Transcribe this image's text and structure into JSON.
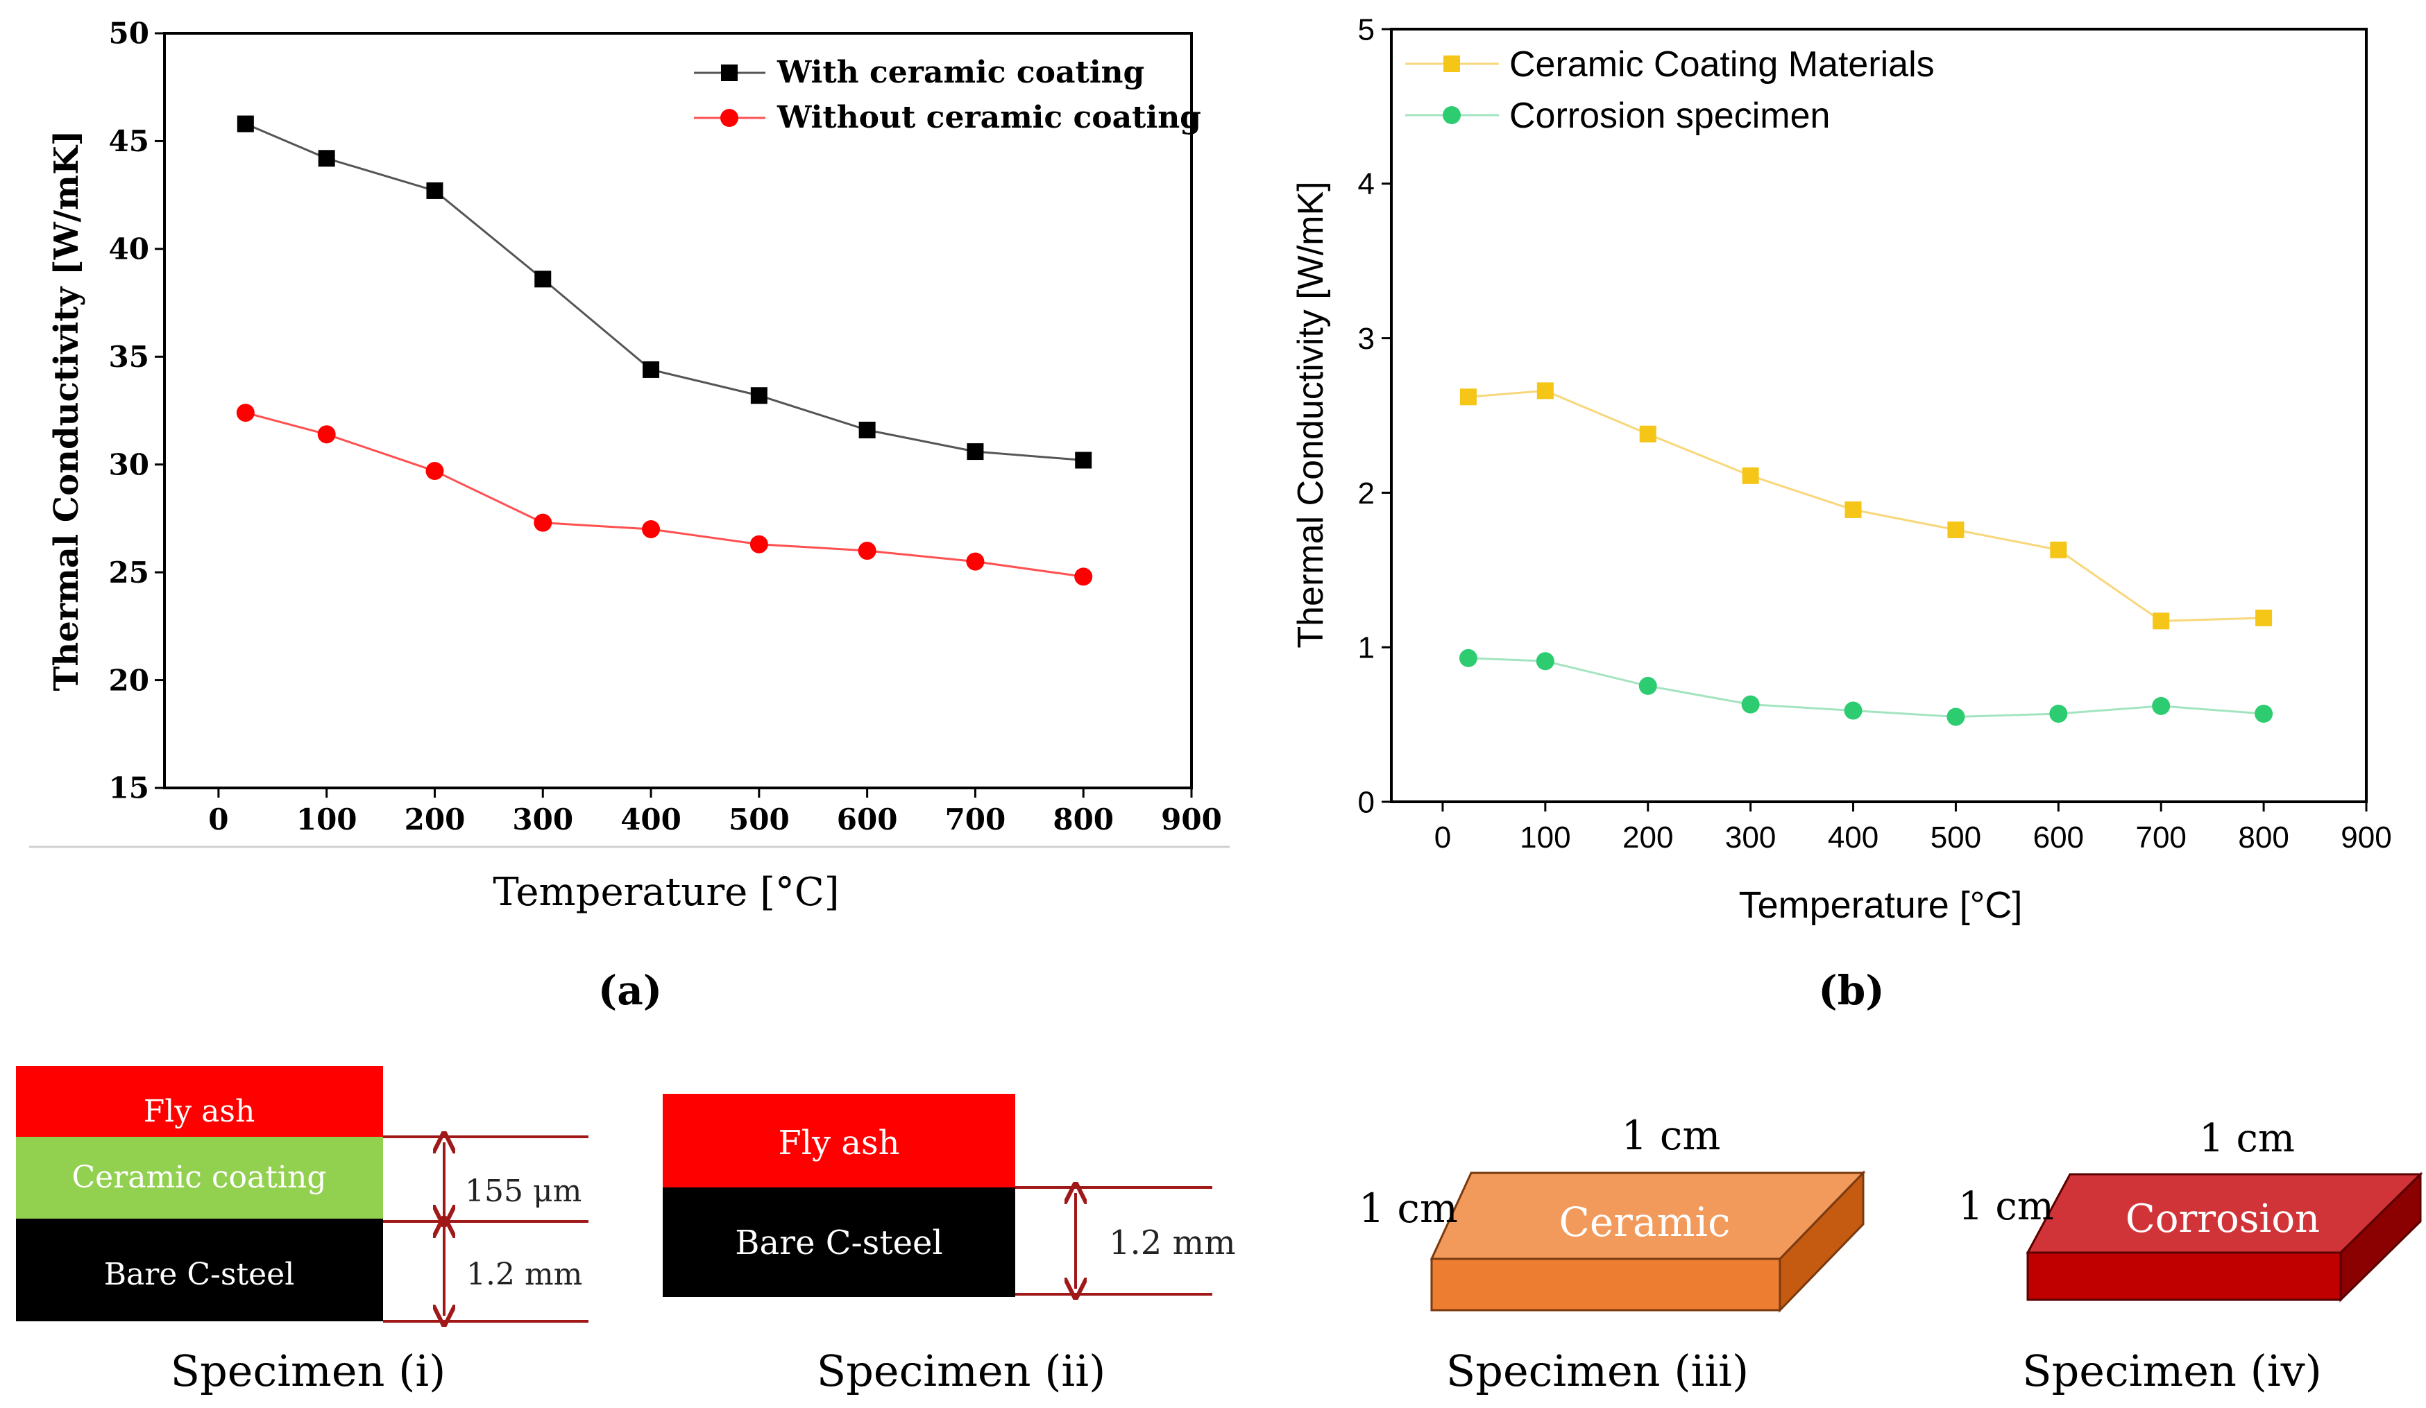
{
  "chart_data": [
    {
      "type": "line",
      "panel_label": "(a)",
      "xlabel": "Temperature [°C]",
      "ylabel": "Thermal Conductivity [W/mK]",
      "xlim": [
        -50,
        900
      ],
      "ylim": [
        15,
        50
      ],
      "xticks": [
        0,
        100,
        200,
        300,
        400,
        500,
        600,
        700,
        800,
        900
      ],
      "yticks": [
        15,
        20,
        25,
        30,
        35,
        40,
        45,
        50
      ],
      "x": [
        25,
        100,
        200,
        300,
        400,
        500,
        600,
        700,
        800
      ],
      "legend_position": "top-right",
      "series": [
        {
          "name": "With ceramic coating",
          "marker": "square",
          "color": "#000000",
          "line_color": "#555555",
          "values": [
            45.8,
            44.2,
            42.7,
            38.6,
            34.4,
            33.2,
            31.6,
            30.6,
            30.2
          ]
        },
        {
          "name": "Without ceramic coating",
          "marker": "circle",
          "color": "#ff0000",
          "line_color": "#ff5050",
          "values": [
            32.4,
            31.4,
            29.7,
            27.3,
            27.0,
            26.3,
            26.0,
            25.5,
            24.8
          ]
        }
      ]
    },
    {
      "type": "line",
      "panel_label": "(b)",
      "xlabel": "Temperature [°C]",
      "ylabel": "Thermal Conductivity [W/mK]",
      "xlim": [
        -50,
        900
      ],
      "ylim": [
        0,
        5
      ],
      "xticks": [
        0,
        100,
        200,
        300,
        400,
        500,
        600,
        700,
        800,
        900
      ],
      "yticks": [
        0,
        1,
        2,
        3,
        4,
        5
      ],
      "x": [
        25,
        100,
        200,
        300,
        400,
        500,
        600,
        700,
        800
      ],
      "legend_position": "top-left",
      "series": [
        {
          "name": "Ceramic Coating Materials",
          "marker": "square",
          "color": "#f5c518",
          "line_color": "#f8d77a",
          "values": [
            2.62,
            2.66,
            2.38,
            2.11,
            1.89,
            1.76,
            1.63,
            1.17,
            1.19
          ]
        },
        {
          "name": "Corrosion specimen",
          "marker": "circle",
          "color": "#2ecc71",
          "line_color": "#a3e4c0",
          "values": [
            0.93,
            0.91,
            0.75,
            0.63,
            0.59,
            0.55,
            0.57,
            0.62,
            0.57
          ]
        }
      ]
    }
  ],
  "specimens": {
    "s1": {
      "caption": "Specimen (i)",
      "fly_ash": "Fly ash",
      "ceramic": "Ceramic coating",
      "steel": "Bare C-steel",
      "dim_coating": "155 μm",
      "dim_steel": "1.2 mm"
    },
    "s2": {
      "caption": "Specimen (ii)",
      "fly_ash": "Fly ash",
      "steel": "Bare C-steel",
      "dim_steel": "1.2 mm"
    },
    "s3": {
      "caption": "Specimen (iii)",
      "label": "Ceramic",
      "dim_width": "1 cm",
      "dim_depth": "1 cm"
    },
    "s4": {
      "caption": "Specimen (iv)",
      "label": "Corrosion",
      "dim_width": "1 cm",
      "dim_depth": "1 cm"
    }
  },
  "colors": {
    "fly_ash": "#ff0000",
    "ceramic_layer": "#92d050",
    "steel": "#000000",
    "dimension": "#a01818",
    "ceramic_top": "#f19a5c",
    "ceramic_front": "#ed7d31",
    "ceramic_side": "#c55a11",
    "corrosion_top": "#d13438",
    "corrosion_front": "#c00000",
    "corrosion_side": "#8b0000"
  }
}
